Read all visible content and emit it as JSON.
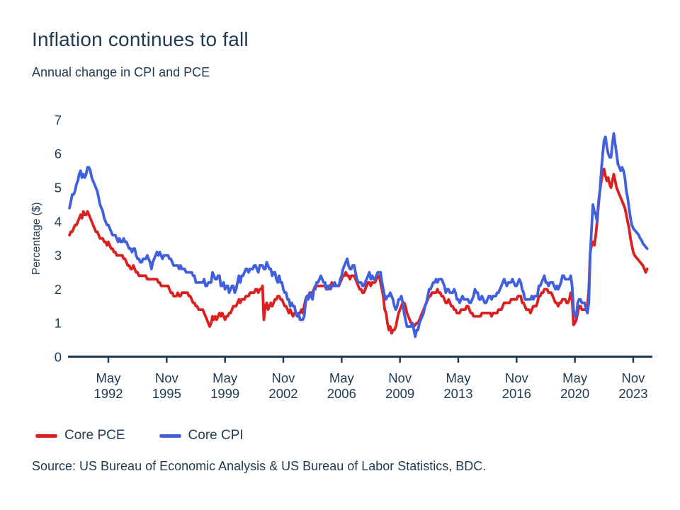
{
  "page": {
    "title": "Inflation continues to fall",
    "subtitle": "Annual change in CPI and PCE",
    "source": "Source: US Bureau of Economic Analysis & US Bureau of Labor Statistics, BDC."
  },
  "chart_data": {
    "type": "line",
    "title": "Inflation continues to fall",
    "subtitle": "Annual change in CPI and PCE",
    "xlabel": "",
    "ylabel": "Percentage ($)",
    "ylim": [
      0,
      7
    ],
    "y_ticks": [
      0,
      1,
      2,
      3,
      4,
      5,
      6,
      7
    ],
    "grid": false,
    "legend_position": "bottom-left",
    "frequency": "monthly",
    "x_start": "1990-01",
    "x_end": "2024-09",
    "x_ticks": [
      {
        "month": "May",
        "year": "1992",
        "index": 28
      },
      {
        "month": "Nov",
        "year": "1995",
        "index": 70
      },
      {
        "month": "May",
        "year": "1999",
        "index": 112
      },
      {
        "month": "Nov",
        "year": "2002",
        "index": 154
      },
      {
        "month": "May",
        "year": "2006",
        "index": 196
      },
      {
        "month": "Nov",
        "year": "2009",
        "index": 238
      },
      {
        "month": "May",
        "year": "2013",
        "index": 280
      },
      {
        "month": "Nov",
        "year": "2016",
        "index": 322
      },
      {
        "month": "May",
        "year": "2020",
        "index": 364
      },
      {
        "month": "Nov",
        "year": "2023",
        "index": 406
      }
    ],
    "series": [
      {
        "name": "Core PCE",
        "color": "#dc2020",
        "values": [
          3.6,
          3.7,
          3.7,
          3.8,
          3.9,
          3.9,
          4.0,
          4.1,
          4.2,
          4.1,
          4.3,
          4.2,
          4.2,
          4.3,
          4.2,
          4.1,
          4.0,
          3.9,
          3.8,
          3.7,
          3.7,
          3.6,
          3.5,
          3.5,
          3.5,
          3.4,
          3.4,
          3.3,
          3.4,
          3.3,
          3.2,
          3.2,
          3.1,
          3.1,
          3.0,
          3.0,
          3.0,
          3.0,
          3.0,
          2.9,
          2.9,
          2.8,
          2.7,
          2.7,
          2.6,
          2.6,
          2.7,
          2.6,
          2.5,
          2.5,
          2.4,
          2.4,
          2.4,
          2.4,
          2.4,
          2.4,
          2.3,
          2.3,
          2.3,
          2.3,
          2.3,
          2.3,
          2.3,
          2.3,
          2.2,
          2.2,
          2.1,
          2.1,
          2.1,
          2.1,
          2.1,
          2.1,
          2.0,
          1.9,
          1.9,
          1.8,
          1.8,
          1.8,
          1.9,
          1.8,
          1.8,
          1.9,
          1.9,
          1.9,
          1.9,
          1.9,
          1.8,
          1.8,
          1.7,
          1.6,
          1.6,
          1.5,
          1.5,
          1.4,
          1.4,
          1.4,
          1.4,
          1.3,
          1.2,
          1.1,
          1.0,
          0.9,
          1.0,
          1.2,
          1.1,
          1.2,
          1.1,
          1.2,
          1.3,
          1.2,
          1.3,
          1.2,
          1.1,
          1.2,
          1.2,
          1.3,
          1.3,
          1.4,
          1.5,
          1.5,
          1.5,
          1.6,
          1.7,
          1.6,
          1.7,
          1.7,
          1.7,
          1.8,
          1.8,
          1.8,
          1.9,
          1.9,
          1.9,
          1.9,
          2.0,
          2.0,
          1.9,
          2.0,
          2.0,
          2.1,
          1.1,
          1.5,
          1.6,
          1.4,
          1.5,
          1.6,
          1.5,
          1.6,
          1.7,
          1.7,
          1.8,
          1.8,
          1.7,
          1.7,
          1.6,
          1.5,
          1.5,
          1.4,
          1.3,
          1.4,
          1.3,
          1.2,
          1.3,
          1.3,
          1.2,
          1.3,
          1.3,
          1.4,
          1.3,
          1.5,
          1.7,
          1.8,
          1.8,
          1.9,
          1.9,
          1.9,
          2.0,
          2.1,
          2.1,
          2.1,
          2.1,
          2.1,
          2.1,
          2.1,
          2.1,
          2.0,
          2.0,
          2.1,
          2.1,
          2.2,
          2.1,
          2.1,
          2.1,
          2.1,
          2.1,
          2.2,
          2.3,
          2.4,
          2.4,
          2.5,
          2.4,
          2.4,
          2.3,
          2.4,
          2.4,
          2.4,
          2.3,
          2.2,
          2.1,
          2.0,
          2.0,
          1.9,
          1.9,
          2.0,
          2.1,
          2.2,
          2.2,
          2.1,
          2.2,
          2.2,
          2.2,
          2.3,
          2.4,
          2.4,
          2.2,
          2.0,
          1.8,
          1.4,
          1.3,
          1.0,
          0.8,
          0.9,
          0.7,
          0.8,
          0.8,
          0.9,
          1.1,
          1.3,
          1.4,
          1.5,
          1.6,
          1.6,
          1.5,
          1.3,
          1.2,
          1.1,
          1.0,
          1.0,
          0.9,
          0.95,
          1.0,
          1.0,
          1.1,
          1.2,
          1.3,
          1.4,
          1.5,
          1.6,
          1.7,
          1.8,
          1.8,
          1.9,
          1.9,
          1.9,
          1.9,
          2.0,
          1.9,
          1.9,
          1.8,
          1.8,
          1.7,
          1.6,
          1.6,
          1.7,
          1.6,
          1.5,
          1.5,
          1.4,
          1.4,
          1.3,
          1.3,
          1.3,
          1.4,
          1.4,
          1.4,
          1.4,
          1.5,
          1.5,
          1.4,
          1.3,
          1.3,
          1.2,
          1.2,
          1.2,
          1.2,
          1.2,
          1.2,
          1.3,
          1.3,
          1.3,
          1.3,
          1.3,
          1.3,
          1.3,
          1.2,
          1.3,
          1.3,
          1.3,
          1.3,
          1.4,
          1.4,
          1.4,
          1.5,
          1.6,
          1.6,
          1.6,
          1.6,
          1.6,
          1.7,
          1.7,
          1.7,
          1.7,
          1.7,
          1.8,
          1.8,
          1.8,
          1.6,
          1.6,
          1.5,
          1.4,
          1.4,
          1.4,
          1.3,
          1.4,
          1.5,
          1.5,
          1.5,
          1.6,
          1.8,
          1.8,
          1.9,
          1.9,
          2.0,
          2.0,
          2.0,
          1.9,
          1.9,
          1.9,
          1.8,
          1.7,
          1.6,
          1.6,
          1.5,
          1.6,
          1.6,
          1.7,
          1.7,
          1.7,
          1.6,
          1.6,
          1.7,
          1.9,
          1.7,
          0.95,
          1.0,
          1.1,
          1.3,
          1.5,
          1.5,
          1.4,
          1.4,
          1.4,
          1.4,
          1.5,
          2.0,
          3.1,
          3.3,
          3.4,
          3.3,
          3.6,
          4.0,
          4.5,
          4.9,
          5.2,
          5.4,
          5.55,
          5.35,
          5.2,
          5.3,
          5.1,
          5.0,
          5.2,
          5.4,
          5.2,
          5.0,
          4.9,
          4.8,
          4.7,
          4.6,
          4.5,
          4.4,
          4.2,
          4.0,
          3.8,
          3.5,
          3.3,
          3.1,
          3.0,
          2.95,
          2.9,
          2.85,
          2.8,
          2.75,
          2.7,
          2.6,
          2.5,
          2.6
        ]
      },
      {
        "name": "Core CPI",
        "color": "#4060dd",
        "values": [
          4.4,
          4.6,
          4.8,
          4.8,
          4.9,
          5.1,
          5.2,
          5.4,
          5.5,
          5.3,
          5.4,
          5.3,
          5.4,
          5.6,
          5.6,
          5.5,
          5.3,
          5.2,
          5.1,
          5.0,
          4.9,
          4.7,
          4.5,
          4.4,
          4.3,
          4.1,
          4.0,
          3.9,
          3.9,
          3.8,
          3.7,
          3.6,
          3.6,
          3.6,
          3.5,
          3.4,
          3.5,
          3.4,
          3.4,
          3.5,
          3.4,
          3.4,
          3.3,
          3.2,
          3.2,
          3.1,
          3.2,
          3.2,
          3.0,
          2.9,
          2.9,
          2.8,
          2.8,
          2.9,
          2.9,
          2.9,
          3.0,
          2.9,
          2.8,
          2.6,
          2.8,
          2.9,
          3.0,
          3.1,
          3.0,
          3.1,
          3.0,
          2.9,
          3.0,
          3.0,
          3.0,
          3.0,
          2.9,
          2.9,
          2.8,
          2.7,
          2.7,
          2.7,
          2.7,
          2.6,
          2.7,
          2.6,
          2.6,
          2.6,
          2.5,
          2.5,
          2.5,
          2.5,
          2.5,
          2.4,
          2.4,
          2.2,
          2.2,
          2.2,
          2.2,
          2.2,
          2.2,
          2.3,
          2.1,
          2.1,
          2.2,
          2.2,
          2.2,
          2.5,
          2.4,
          2.3,
          2.3,
          2.4,
          2.4,
          2.1,
          2.1,
          2.2,
          2.0,
          2.1,
          2.1,
          1.9,
          2.0,
          2.1,
          2.1,
          1.9,
          2.0,
          2.2,
          2.4,
          2.2,
          2.4,
          2.4,
          2.5,
          2.6,
          2.6,
          2.5,
          2.6,
          2.6,
          2.6,
          2.7,
          2.7,
          2.6,
          2.5,
          2.7,
          2.7,
          2.7,
          2.6,
          2.6,
          2.8,
          2.7,
          2.6,
          2.6,
          2.4,
          2.5,
          2.5,
          2.3,
          2.2,
          2.4,
          2.2,
          2.2,
          2.0,
          1.9,
          1.9,
          1.7,
          1.7,
          1.5,
          1.6,
          1.5,
          1.5,
          1.3,
          1.2,
          1.3,
          1.1,
          1.1,
          1.1,
          1.2,
          1.6,
          1.8,
          1.7,
          1.9,
          1.8,
          1.7,
          2.0,
          2.0,
          2.2,
          2.2,
          2.3,
          2.4,
          2.3,
          2.2,
          2.2,
          2.0,
          2.1,
          2.1,
          2.0,
          2.1,
          2.1,
          2.2,
          2.1,
          2.1,
          2.1,
          2.3,
          2.4,
          2.6,
          2.7,
          2.8,
          2.9,
          2.7,
          2.6,
          2.6,
          2.7,
          2.7,
          2.5,
          2.3,
          2.2,
          2.2,
          2.2,
          2.1,
          2.1,
          2.2,
          2.3,
          2.4,
          2.5,
          2.3,
          2.4,
          2.3,
          2.3,
          2.4,
          2.5,
          2.5,
          2.5,
          2.2,
          2.0,
          1.8,
          1.7,
          1.8,
          1.8,
          1.9,
          1.8,
          1.7,
          1.5,
          1.4,
          1.5,
          1.7,
          1.7,
          1.8,
          1.6,
          1.3,
          1.1,
          0.9,
          0.9,
          0.9,
          0.9,
          1.0,
          0.8,
          0.6,
          0.8,
          0.8,
          1.0,
          1.1,
          1.2,
          1.3,
          1.5,
          1.6,
          1.8,
          2.0,
          2.0,
          2.1,
          2.2,
          2.2,
          2.3,
          2.2,
          2.3,
          2.3,
          2.3,
          2.2,
          2.1,
          1.9,
          2.0,
          2.0,
          1.9,
          1.9,
          1.9,
          2.0,
          1.9,
          1.7,
          1.7,
          1.6,
          1.7,
          1.8,
          1.7,
          1.7,
          1.7,
          1.7,
          1.6,
          1.6,
          1.7,
          1.8,
          2.0,
          1.9,
          1.9,
          1.7,
          1.7,
          1.8,
          1.7,
          1.6,
          1.6,
          1.7,
          1.8,
          1.8,
          1.7,
          1.8,
          1.8,
          1.8,
          1.9,
          1.9,
          2.0,
          2.1,
          2.2,
          2.3,
          2.2,
          2.1,
          2.2,
          2.2,
          2.2,
          2.3,
          2.2,
          2.1,
          2.1,
          2.2,
          2.3,
          2.2,
          2.0,
          1.9,
          1.7,
          1.7,
          1.7,
          1.7,
          1.7,
          1.8,
          1.7,
          1.8,
          1.8,
          1.8,
          2.1,
          2.1,
          2.2,
          2.3,
          2.4,
          2.2,
          2.2,
          2.1,
          2.2,
          2.2,
          2.2,
          2.1,
          2.0,
          2.1,
          2.0,
          2.1,
          2.2,
          2.4,
          2.4,
          2.3,
          2.3,
          2.3,
          2.3,
          2.4,
          2.1,
          1.4,
          1.2,
          1.2,
          1.6,
          1.7,
          1.7,
          1.6,
          1.6,
          1.6,
          1.4,
          1.3,
          1.6,
          3.0,
          3.8,
          4.5,
          4.3,
          4.2,
          4.0,
          4.6,
          4.9,
          5.5,
          6.0,
          6.4,
          6.5,
          6.2,
          6.0,
          5.9,
          5.9,
          6.3,
          6.6,
          6.3,
          6.0,
          5.7,
          5.6,
          5.5,
          5.6,
          5.5,
          5.3,
          4.9,
          4.7,
          4.4,
          4.1,
          3.9,
          3.8,
          3.75,
          3.7,
          3.65,
          3.6,
          3.5,
          3.45,
          3.35,
          3.3,
          3.25,
          3.2
        ]
      }
    ]
  }
}
